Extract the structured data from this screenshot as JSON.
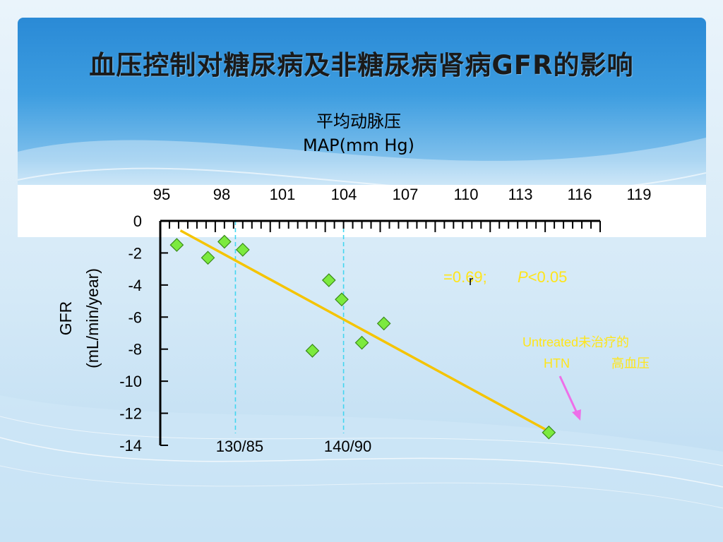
{
  "slide": {
    "title": "血压控制对糖尿病及非糖尿病肾病GFR的影响"
  },
  "colors": {
    "header_blue": "#2a8ad6",
    "regression_line": "#f5c400",
    "points": "#7cea3e",
    "reference_lines": "#43d6f0",
    "annotation_text": "#ffe51a",
    "arrow": "#ee6fe8"
  },
  "chart_data": {
    "type": "scatter",
    "x_title_cn": "平均动脉压",
    "x_title_en": "MAP(mm Hg)",
    "y_title_line1": "GFR",
    "y_title_line2": "(mL/min/year)",
    "x_ticks": [
      "95",
      "98",
      "101",
      "104",
      "107",
      "110",
      "113",
      "116",
      "119"
    ],
    "x_tick_values": [
      95,
      98,
      101,
      104,
      107,
      110,
      113,
      116,
      119
    ],
    "y_ticks": [
      "0",
      "-2",
      "-4",
      "-6",
      "-8",
      "-10",
      "-12",
      "-14"
    ],
    "y_tick_values": [
      0,
      -2,
      -4,
      -6,
      -8,
      -10,
      -12,
      -14
    ],
    "xlim": [
      95,
      119
    ],
    "ylim": [
      -14,
      0
    ],
    "x_axis_position": "top",
    "grid": false,
    "points": [
      {
        "x": 95.9,
        "y": -1.5
      },
      {
        "x": 97.6,
        "y": -2.3
      },
      {
        "x": 98.5,
        "y": -1.3
      },
      {
        "x": 99.5,
        "y": -1.8
      },
      {
        "x": 103.3,
        "y": -8.1
      },
      {
        "x": 104.2,
        "y": -3.7
      },
      {
        "x": 104.9,
        "y": -4.9
      },
      {
        "x": 106.0,
        "y": -7.6
      },
      {
        "x": 107.2,
        "y": -6.4
      },
      {
        "x": 116.2,
        "y": -13.2
      }
    ],
    "regression_line": {
      "x1": 96.1,
      "y1": -0.6,
      "x2": 116.0,
      "y2": -13.0
    },
    "reference_lines": [
      {
        "x": 99.1,
        "label": "130/85"
      },
      {
        "x": 105.0,
        "label": "140/90"
      }
    ],
    "annotations": {
      "stat_prefix": "=0.69;",
      "stat_r_glyph": "r",
      "p_label": "P",
      "p_value": "<0.05",
      "untreated_en_line1": "Untreated",
      "untreated_cn_line1": "未治疗的",
      "untreated_en_line2": "HTN",
      "untreated_cn_line2": "高血压"
    }
  }
}
